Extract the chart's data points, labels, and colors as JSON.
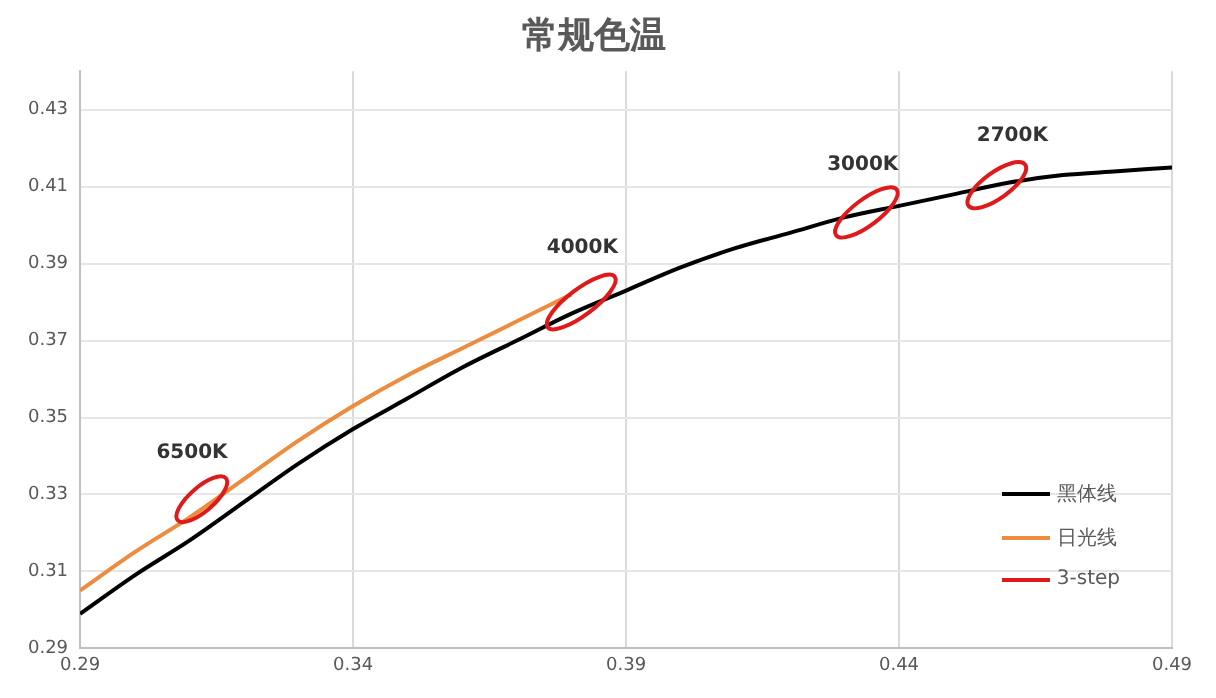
{
  "chart_data": {
    "type": "line",
    "title": "常规色温",
    "xlim": [
      0.29,
      0.49
    ],
    "xticks": [
      0.29,
      0.34,
      0.39,
      0.44,
      0.49
    ],
    "ylim": [
      0.29,
      0.44
    ],
    "yticks": [
      0.29,
      0.31,
      0.33,
      0.35,
      0.37,
      0.39,
      0.41,
      0.43
    ],
    "grid": true,
    "legend": "bottom right",
    "marker": "none",
    "line_style": "solid",
    "series": [
      {
        "name": "黑体线",
        "color": "#000000",
        "x": [
          0.29,
          0.3,
          0.31,
          0.32,
          0.33,
          0.34,
          0.35,
          0.36,
          0.37,
          0.38,
          0.39,
          0.4,
          0.41,
          0.42,
          0.43,
          0.44,
          0.45,
          0.46,
          0.47,
          0.48,
          0.49
        ],
        "values": [
          0.299,
          0.309,
          0.318,
          0.328,
          0.338,
          0.347,
          0.355,
          0.363,
          0.37,
          0.377,
          0.383,
          0.389,
          0.394,
          0.398,
          0.402,
          0.405,
          0.408,
          0.411,
          0.413,
          0.414,
          0.415
        ]
      },
      {
        "name": "日光线",
        "color": "#ed8b3e",
        "x": [
          0.29,
          0.3,
          0.31,
          0.32,
          0.33,
          0.34,
          0.35,
          0.36,
          0.37,
          0.38
        ],
        "values": [
          0.305,
          0.315,
          0.324,
          0.334,
          0.344,
          0.353,
          0.361,
          0.368,
          0.375,
          0.382
        ]
      },
      {
        "name": "3-step",
        "color": "#e01a1a"
      }
    ],
    "annotations": [
      "6500K",
      "4000K",
      "3000K",
      "2700K"
    ]
  }
}
